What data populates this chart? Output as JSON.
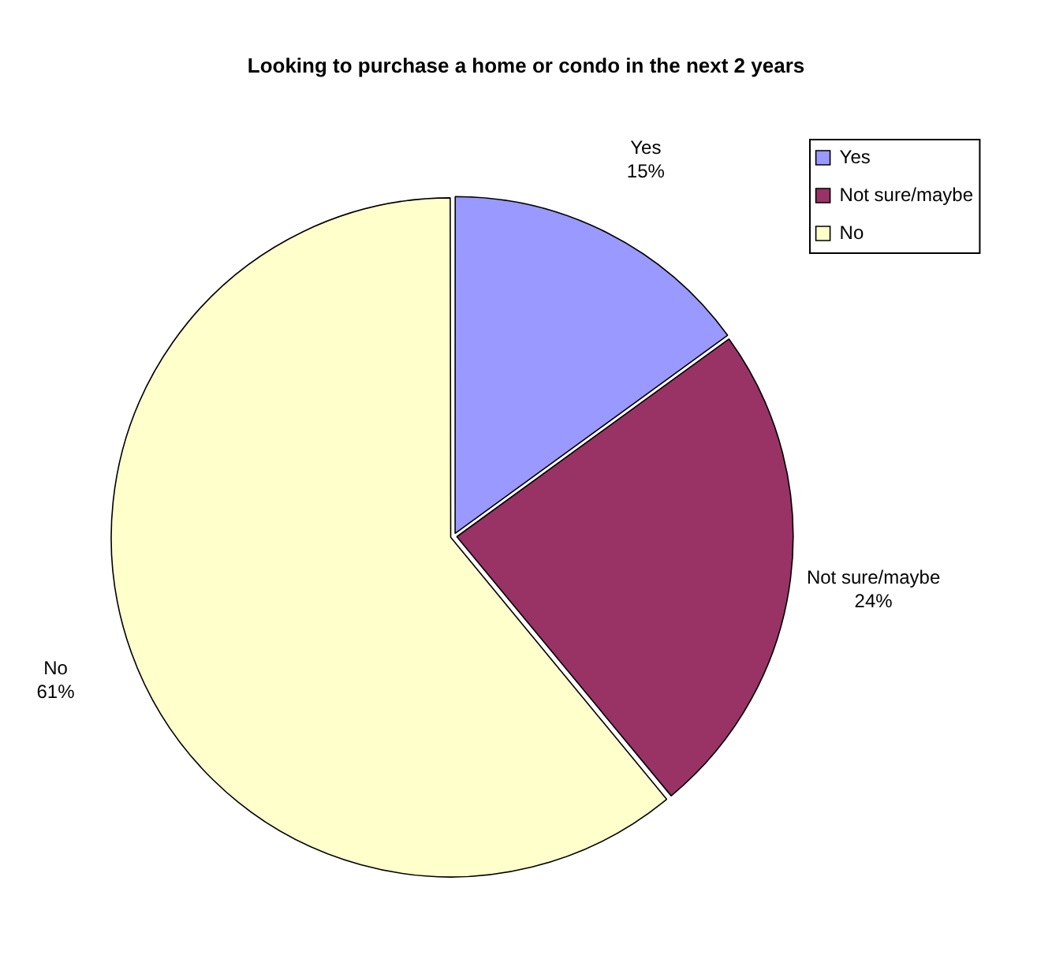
{
  "chart_data": {
    "type": "pie",
    "title": "Looking to purchase a home or condo in the next 2 years",
    "categories": [
      "Yes",
      "Not sure/maybe",
      "No"
    ],
    "values": [
      15,
      24,
      61
    ],
    "value_labels": [
      "15%",
      "24%",
      "61%"
    ],
    "colors": [
      "#9999ff",
      "#993366",
      "#ffffcc"
    ],
    "legend": "top right"
  }
}
